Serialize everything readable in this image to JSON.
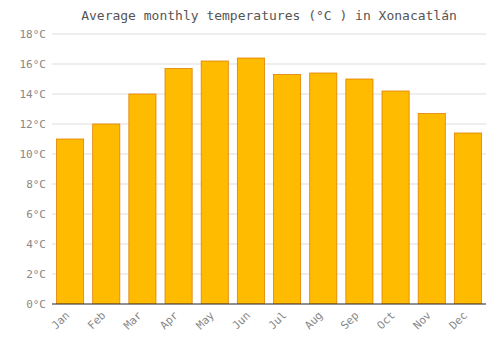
{
  "chart_data": {
    "type": "bar",
    "title": "Average monthly temperatures (°C ) in Xonacatlán",
    "categories": [
      "Jan",
      "Feb",
      "Mar",
      "Apr",
      "May",
      "Jun",
      "Jul",
      "Aug",
      "Sep",
      "Oct",
      "Nov",
      "Dec"
    ],
    "values": [
      11.0,
      12.0,
      14.0,
      15.7,
      16.2,
      16.4,
      15.3,
      15.4,
      15.0,
      14.2,
      12.7,
      11.4
    ],
    "color": "#FFBB00",
    "ylim": [
      0,
      18
    ],
    "yticks": [
      {
        "value": 0,
        "label": "0°C"
      },
      {
        "value": 2,
        "label": "2°C"
      },
      {
        "value": 4,
        "label": "4°C"
      },
      {
        "value": 6,
        "label": "6°C"
      },
      {
        "value": 8,
        "label": "8°C"
      },
      {
        "value": 10,
        "label": "10°C"
      },
      {
        "value": 12,
        "label": "12°C"
      },
      {
        "value": 14,
        "label": "14°C"
      },
      {
        "value": 16,
        "label": "16°C"
      },
      {
        "value": 18,
        "label": "18°C"
      }
    ],
    "grid": true
  }
}
